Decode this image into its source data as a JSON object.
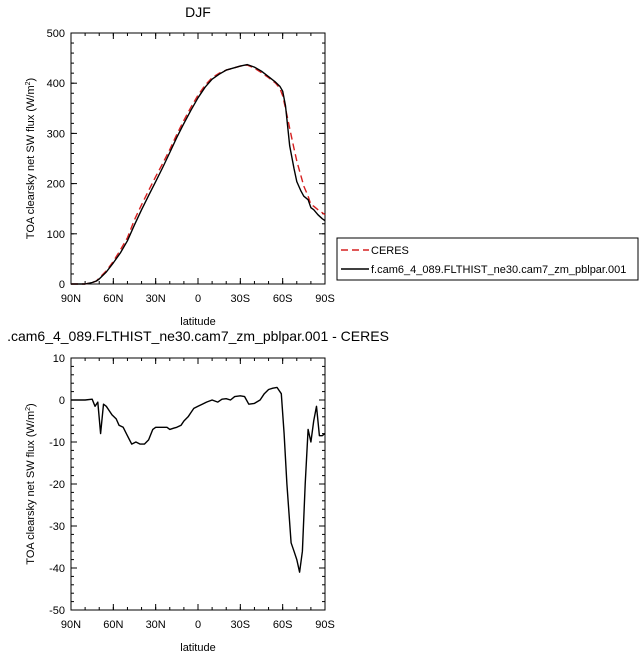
{
  "chart_data": [
    {
      "type": "line",
      "title": "DJF",
      "xlabel": "latitude",
      "ylabel": "TOA clearsky net SW flux (W/m",
      "ylabel_sup": "2",
      "ylabel_close": ")",
      "xlim": [
        90,
        -90
      ],
      "ylim": [
        0,
        500
      ],
      "x_ticks": [
        90,
        60,
        30,
        0,
        -30,
        -60,
        -90
      ],
      "x_tick_labels": [
        "90N",
        "60N",
        "30N",
        "0",
        "30S",
        "60S",
        "90S"
      ],
      "y_ticks": [
        0,
        100,
        200,
        300,
        400,
        500
      ],
      "y_tick_labels": [
        "0",
        "100",
        "200",
        "300",
        "400",
        "500"
      ],
      "legend": "right",
      "series": [
        {
          "name": "CERES",
          "color": "#d62020",
          "dash": "dashed",
          "x": [
            90,
            85,
            80,
            75,
            72,
            70,
            65,
            60,
            55,
            50,
            45,
            40,
            35,
            30,
            25,
            20,
            15,
            10,
            5,
            0,
            -5,
            -10,
            -15,
            -20,
            -25,
            -30,
            -35,
            -40,
            -45,
            -50,
            -55,
            -58,
            -60,
            -62,
            -65,
            -68,
            -70,
            -73,
            -75,
            -78,
            -80,
            -82,
            -85,
            -88,
            -90
          ],
          "y": [
            0,
            0,
            0,
            3,
            6,
            12,
            26,
            45,
            68,
            92,
            128,
            158,
            186,
            214,
            240,
            268,
            298,
            326,
            352,
            376,
            396,
            411,
            420,
            426,
            430,
            434,
            436,
            430,
            421,
            411,
            400,
            390,
            375,
            350,
            310,
            270,
            245,
            215,
            195,
            175,
            158,
            155,
            148,
            142,
            138
          ]
        },
        {
          "name": "f.cam6_4_089.FLTHIST_ne30.cam7_zm_pblpar.001",
          "color": "#000000",
          "dash": "solid",
          "x": [
            90,
            85,
            80,
            75,
            72,
            70,
            65,
            60,
            55,
            50,
            45,
            40,
            35,
            30,
            25,
            20,
            15,
            10,
            5,
            0,
            -5,
            -10,
            -15,
            -20,
            -25,
            -30,
            -35,
            -40,
            -45,
            -50,
            -55,
            -58,
            -60,
            -62,
            -65,
            -68,
            -70,
            -73,
            -75,
            -78,
            -80,
            -82,
            -85,
            -88,
            -90
          ],
          "y": [
            0,
            0,
            0,
            3,
            6,
            10,
            24,
            42,
            62,
            86,
            118,
            148,
            176,
            204,
            232,
            262,
            292,
            320,
            346,
            371,
            392,
            408,
            418,
            426,
            430,
            434,
            437,
            432,
            424,
            413,
            402,
            394,
            384,
            355,
            275,
            230,
            204,
            185,
            175,
            168,
            152,
            148,
            138,
            130,
            126
          ]
        }
      ]
    },
    {
      "type": "line",
      "title": ".cam6_4_089.FLTHIST_ne30.cam7_zm_pblpar.001 - CERES",
      "xlabel": "latitude",
      "ylabel": "TOA clearsky net SW flux (W/m",
      "ylabel_sup": "2",
      "ylabel_close": ")",
      "xlim": [
        90,
        -90
      ],
      "ylim": [
        -50,
        10
      ],
      "x_ticks": [
        90,
        60,
        30,
        0,
        -30,
        -60,
        -90
      ],
      "x_tick_labels": [
        "90N",
        "60N",
        "30N",
        "0",
        "30S",
        "60S",
        "90S"
      ],
      "y_ticks": [
        -50,
        -40,
        -30,
        -20,
        -10,
        0,
        10
      ],
      "y_tick_labels": [
        "-50",
        "-40",
        "-30",
        "-20",
        "-10",
        "0",
        "10"
      ],
      "series": [
        {
          "color": "#000000",
          "dash": "solid",
          "x": [
            90,
            85,
            80,
            75,
            73,
            71,
            69,
            67,
            65,
            63,
            61,
            58,
            56,
            53,
            50,
            47,
            44,
            41,
            38,
            35,
            32,
            30,
            27,
            25,
            22,
            20,
            17,
            15,
            12,
            10,
            7,
            5,
            3,
            0,
            -3,
            -6,
            -10,
            -14,
            -17,
            -20,
            -23,
            -26,
            -30,
            -33,
            -36,
            -40,
            -44,
            -47,
            -50,
            -53,
            -56,
            -59,
            -61,
            -63,
            -66,
            -68,
            -70,
            -72,
            -74,
            -76,
            -78,
            -80,
            -82,
            -84,
            -86,
            -88,
            -90
          ],
          "y": [
            0,
            0,
            0,
            0.2,
            -1.5,
            -0.5,
            -8,
            -1,
            -1.5,
            -2.5,
            -3.5,
            -4.5,
            -6,
            -6.5,
            -8.5,
            -10.5,
            -10,
            -10.5,
            -10.5,
            -9.5,
            -7,
            -6.5,
            -6.5,
            -6.5,
            -6.5,
            -7,
            -6.7,
            -6.5,
            -6,
            -5,
            -4,
            -3,
            -2,
            -1.5,
            -1,
            -0.5,
            0,
            -0.5,
            0.2,
            0.3,
            0,
            0.8,
            1,
            0.8,
            -1,
            -0.8,
            0,
            1.5,
            2.5,
            2.8,
            3,
            1.5,
            -8,
            -20,
            -34,
            -36,
            -38,
            -41,
            -36,
            -20,
            -7,
            -10,
            -5,
            -1.5,
            -8.5,
            -8.5,
            -8
          ]
        }
      ]
    }
  ]
}
